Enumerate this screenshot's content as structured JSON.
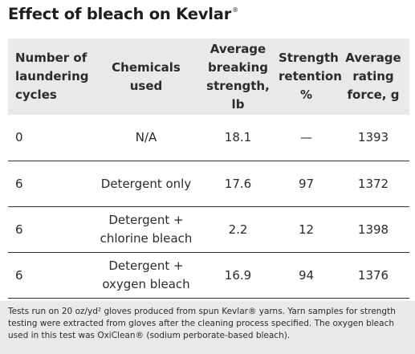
{
  "title": "Effect of bleach on Kevlar",
  "title_mark": "®",
  "headers": {
    "cycles": [
      "Number of",
      "laundering",
      "cycles"
    ],
    "chemicals": [
      "Chemicals",
      "used"
    ],
    "strength": [
      "Average",
      "breaking",
      "strength, lb"
    ],
    "retention": [
      "Strength",
      "retention",
      "%"
    ],
    "force": [
      "Average",
      "rating",
      "force, g"
    ]
  },
  "rows": [
    {
      "cycles": "0",
      "chemicals": [
        "N/A"
      ],
      "strength": "18.1",
      "retention": "—",
      "force": "1393"
    },
    {
      "cycles": "6",
      "chemicals": [
        "Detergent only"
      ],
      "strength": "17.6",
      "retention": "97",
      "force": "1372"
    },
    {
      "cycles": "6",
      "chemicals": [
        "Detergent +",
        "chlorine bleach"
      ],
      "strength": "2.2",
      "retention": "12",
      "force": "1398"
    },
    {
      "cycles": "6",
      "chemicals": [
        "Detergent +",
        "oxygen bleach"
      ],
      "strength": "16.9",
      "retention": "94",
      "force": "1376"
    }
  ],
  "footnote": {
    "line1": "Tests run on 20 oz/yd² gloves produced from spun Kevlar® yarns. Yarn samples for strength",
    "line2": "testing were extracted from gloves after the cleaning process specified. The oxygen bleach",
    "line3": "used in this test was OxiClean® (sodium perborate-based bleach)."
  }
}
